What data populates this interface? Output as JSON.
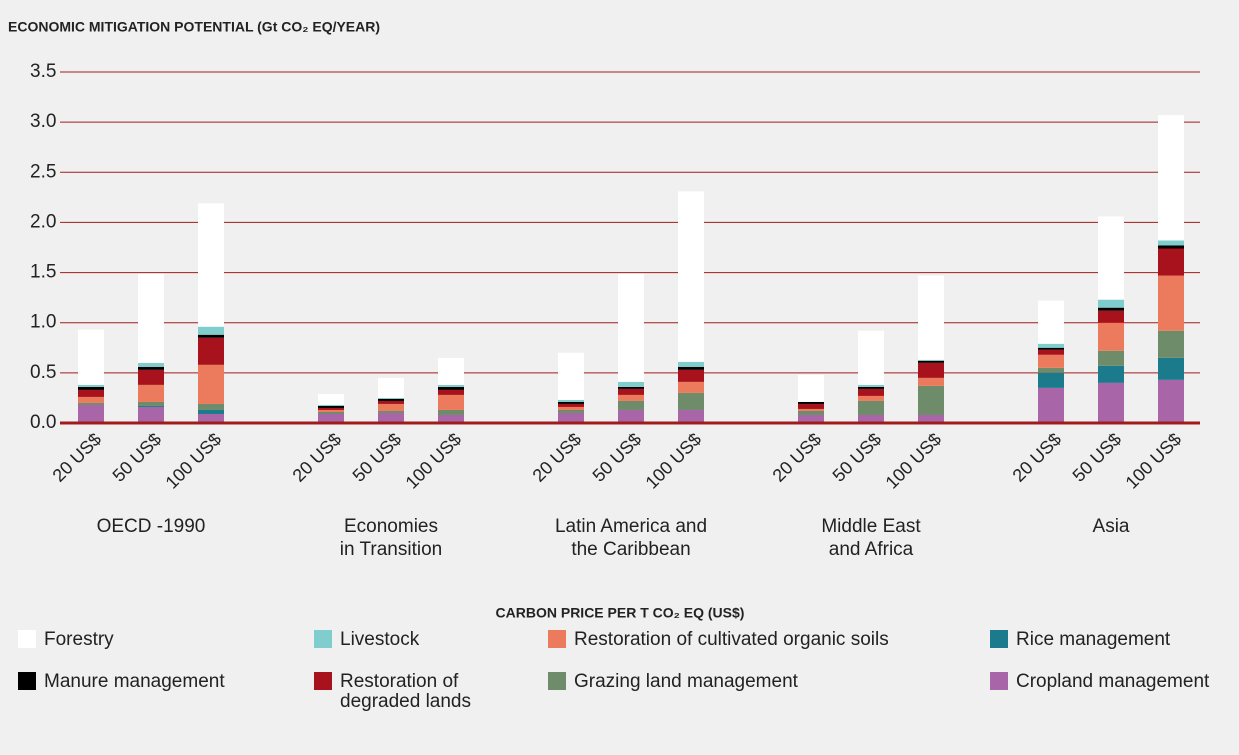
{
  "chart_data": {
    "type": "stacked_bar",
    "title": "ECONOMIC MITIGATION POTENTIAL (Gt CO₂ EQ/YEAR)",
    "x_label": "CARBON PRICE PER T CO₂ EQ (US$)",
    "categories": [
      "20 US$",
      "50 US$",
      "100 US$",
      "20 US$",
      "50 US$",
      "100 US$",
      "20 US$",
      "50 US$",
      "100 US$",
      "20 US$",
      "50 US$",
      "100 US$",
      "20 US$",
      "50 US$",
      "100 US$"
    ],
    "groups": [
      [
        "OECD -1990"
      ],
      [
        "Economies",
        "in Transition"
      ],
      [
        "Latin America and",
        "the Caribbean"
      ],
      [
        "Middle East",
        "and Africa"
      ],
      [
        "Asia"
      ]
    ],
    "ylim": [
      0,
      3.5
    ],
    "yticks": [
      {
        "value": 0,
        "label": "0.0"
      },
      0.5,
      {
        "value": 1,
        "label": "1.0"
      },
      1.5,
      {
        "value": 2,
        "label": "2.0"
      },
      2.5,
      {
        "value": 3,
        "label": "3.0"
      },
      3.5
    ],
    "grid": true,
    "series": [
      {
        "name": "Cropland management",
        "color": "#a865a8",
        "values": [
          0.18,
          0.16,
          0.09,
          0.09,
          0.1,
          0.08,
          0.1,
          0.13,
          0.13,
          0.08,
          0.08,
          0.08,
          0.35,
          0.4,
          0.43
        ]
      },
      {
        "name": "Rice management",
        "color": "#1b7a8c",
        "values": [
          0,
          0.01,
          0.04,
          0,
          0,
          0,
          0,
          0,
          0,
          0,
          0,
          0,
          0.15,
          0.17,
          0.22
        ]
      },
      {
        "name": "Grazing land management",
        "color": "#6e8b6a",
        "values": [
          0.02,
          0.04,
          0.06,
          0.02,
          0.02,
          0.05,
          0.03,
          0.09,
          0.17,
          0.04,
          0.14,
          0.29,
          0.05,
          0.15,
          0.27
        ]
      },
      {
        "name": "Restoration of cultivated organic soils",
        "color": "#ec7a5c",
        "values": [
          0.06,
          0.17,
          0.39,
          0.02,
          0.07,
          0.15,
          0.03,
          0.06,
          0.11,
          0.02,
          0.05,
          0.08,
          0.13,
          0.28,
          0.55
        ]
      },
      {
        "name": "Restoration of degraded lands",
        "color": "#a8121c",
        "values": [
          0.07,
          0.15,
          0.27,
          0.02,
          0.03,
          0.05,
          0.03,
          0.06,
          0.12,
          0.05,
          0.07,
          0.15,
          0.05,
          0.12,
          0.27
        ]
      },
      {
        "name": "Manure management",
        "color": "#000000",
        "values": [
          0.03,
          0.03,
          0.03,
          0.02,
          0.02,
          0.03,
          0.02,
          0.02,
          0.03,
          0.02,
          0.02,
          0.02,
          0.02,
          0.03,
          0.03
        ]
      },
      {
        "name": "Livestock",
        "color": "#7fcdcd",
        "values": [
          0.02,
          0.04,
          0.08,
          0.01,
          0.01,
          0.02,
          0.02,
          0.05,
          0.05,
          0,
          0.02,
          0.01,
          0.04,
          0.08,
          0.05
        ]
      },
      {
        "name": "Forestry",
        "color": "#ffffff",
        "values": [
          0.55,
          0.89,
          1.23,
          0.11,
          0.2,
          0.27,
          0.47,
          1.08,
          1.7,
          0.27,
          0.54,
          0.84,
          0.43,
          0.83,
          1.25
        ]
      }
    ]
  }
}
